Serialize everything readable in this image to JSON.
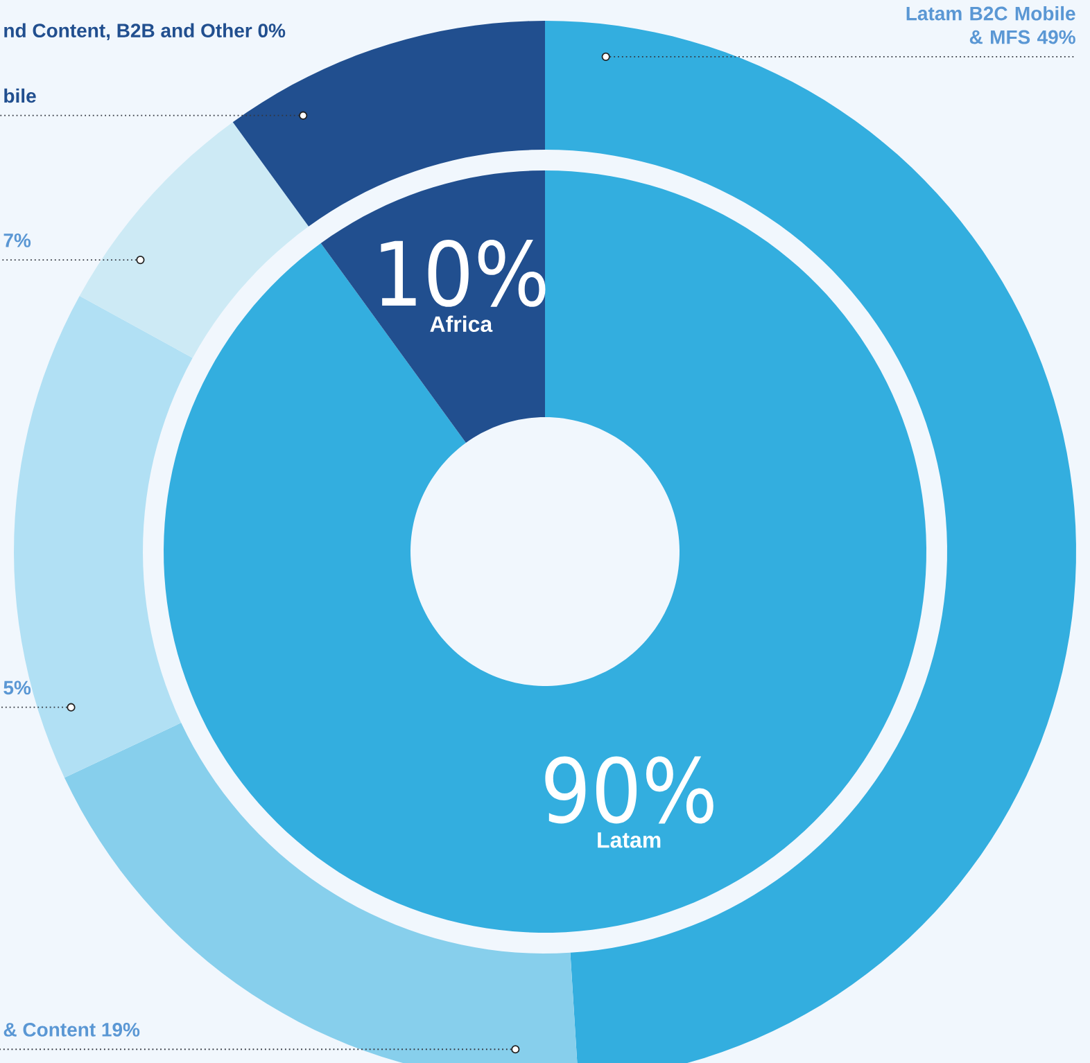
{
  "chart_data": [
    {
      "type": "donut",
      "categories": [
        "Latam",
        "Africa"
      ],
      "values": [
        90,
        10
      ],
      "value_labels": [
        "90%",
        "10%"
      ],
      "colors": [
        "#33aedf",
        "#214f8f"
      ]
    },
    {
      "type": "donut",
      "categories": [
        "Latam B2C Mobile & MFS 49%",
        "& Content 19%",
        "5%",
        "7%",
        "bile",
        "nd Content, B2B and Other 0%"
      ],
      "values": [
        49,
        19,
        15,
        7,
        10,
        0
      ],
      "colors": [
        "#33aedf",
        "#87cfec",
        "#b1e0f4",
        "#cdeaf5",
        "#214f8f",
        "#214f8f"
      ]
    }
  ]
}
